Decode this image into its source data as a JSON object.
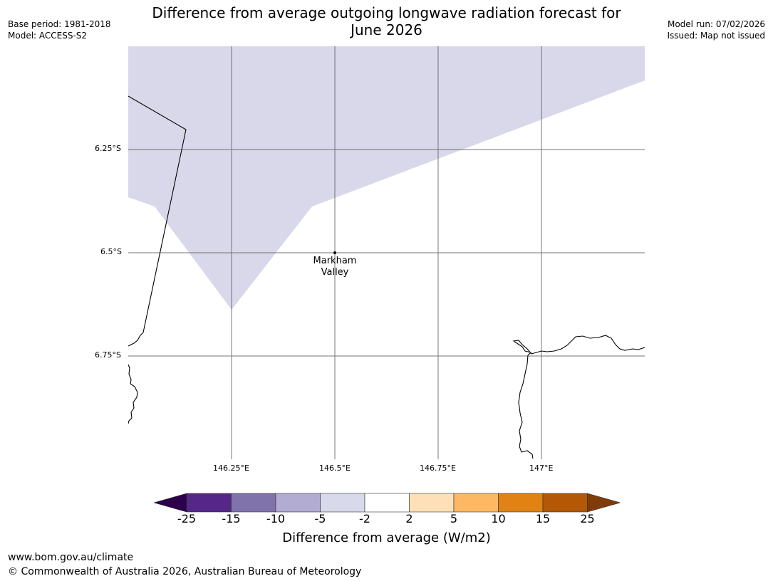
{
  "title_line1": "Difference from average outgoing longwave radiation forecast for",
  "title_line2": "June 2026",
  "meta_left": {
    "base_period": "Base period: 1981-2018",
    "model": "Model: ACCESS-S2"
  },
  "meta_right": {
    "model_run": "Model run: 07/02/2026",
    "issued": "Issued: Map not issued"
  },
  "map": {
    "lat_labels": [
      "6.25°S",
      "6.5°S",
      "6.75°S"
    ],
    "lon_labels": [
      "146.25°E",
      "146.5°E",
      "146.75°E",
      "147°E"
    ],
    "place": {
      "name_line1": "Markham",
      "name_line2": "Valley"
    },
    "shaded_class": "-5 to -2",
    "colors": {
      "shade": "#d8d8ea",
      "grid": "#555555",
      "coast": "#000000"
    }
  },
  "colorbar": {
    "ticks": [
      "-25",
      "-15",
      "-10",
      "-5",
      "-2",
      "2",
      "5",
      "10",
      "15",
      "25"
    ],
    "colors": [
      "#2d004b",
      "#542788",
      "#8073ac",
      "#b2abd2",
      "#d8daeb",
      "#ffffff",
      "#fee0b6",
      "#fdb863",
      "#e08214",
      "#b35806",
      "#7f3b08"
    ],
    "label": "Difference from average (W/m2)"
  },
  "footer": {
    "url": "www.bom.gov.au/climate",
    "copyright": "© Commonwealth of Australia 2026, Australian Bureau of Meteorology"
  }
}
